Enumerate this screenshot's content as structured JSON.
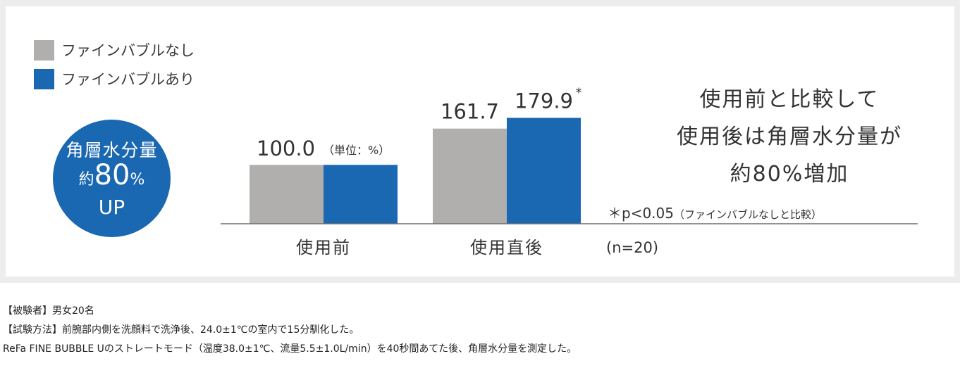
{
  "legend": {
    "items": [
      {
        "label": "ファインバブルなし",
        "color": "#b1afae"
      },
      {
        "label": "ファインバブルあり",
        "color": "#1a67b2"
      }
    ]
  },
  "badge": {
    "line1": "角層水分量",
    "line2_prefix": "約",
    "line2_value": "80",
    "line2_unit": "%",
    "line3": "UP",
    "color": "#1a67b2"
  },
  "summary": {
    "lines": [
      "使用前と比較して",
      "使用後は角層水分量が",
      "約80%増加"
    ]
  },
  "pnote": {
    "main": "＊p<0.05",
    "sub": "（ファインバブルなしと比較）"
  },
  "sample": "(n=20)",
  "notes": [
    "【被験者】男女20名",
    "【試験方法】前腕部内側を洗顔料で洗浄後、24.0±1℃の室内で15分馴化した。",
    "ReFa FINE BUBBLE Uのストレートモード（温度38.0±1℃、流量5.5±1.0L/min）を40秒間あてた後、角層水分量を測定した。"
  ],
  "chart_data": {
    "type": "bar",
    "categories": [
      "使用前",
      "使用直後"
    ],
    "series": [
      {
        "name": "ファインバブルなし",
        "values": [
          100.0,
          161.7
        ],
        "color": "#b1afae"
      },
      {
        "name": "ファインバブルあり",
        "values": [
          100.0,
          179.9
        ],
        "color": "#1a67b2"
      }
    ],
    "data_labels": [
      {
        "text": "100.0",
        "unit_note": "（単位：%）"
      },
      {
        "text": "161.7"
      },
      {
        "text": "179.9",
        "mark": "*"
      }
    ],
    "unit": "（単位：%）",
    "ylim": [
      0,
      200
    ],
    "grid": false,
    "legend_position": "top-left"
  }
}
